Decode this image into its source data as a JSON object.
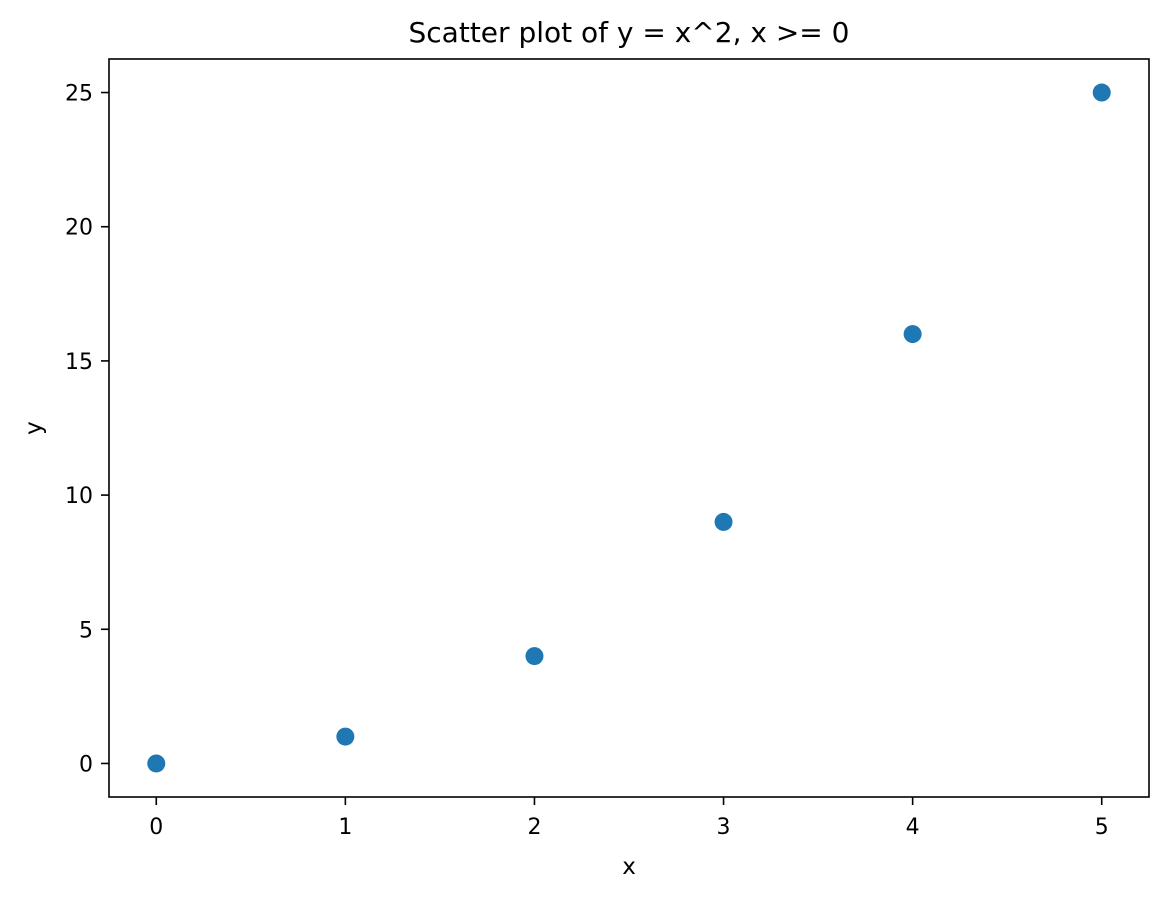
{
  "chart_data": {
    "type": "scatter",
    "title": "Scatter plot of y = x^2, x >= 0",
    "xlabel": "x",
    "ylabel": "y",
    "xlim": [
      -0.25,
      5.25
    ],
    "ylim": [
      -1.25,
      26.25
    ],
    "xticks": [
      0,
      1,
      2,
      3,
      4,
      5
    ],
    "yticks": [
      0,
      5,
      10,
      15,
      20,
      25
    ],
    "grid": false,
    "series": [
      {
        "color": "#1f77b4",
        "points": [
          {
            "x": 0,
            "y": 0
          },
          {
            "x": 1,
            "y": 1
          },
          {
            "x": 2,
            "y": 4
          },
          {
            "x": 3,
            "y": 9
          },
          {
            "x": 4,
            "y": 16
          },
          {
            "x": 5,
            "y": 25
          }
        ]
      }
    ]
  }
}
